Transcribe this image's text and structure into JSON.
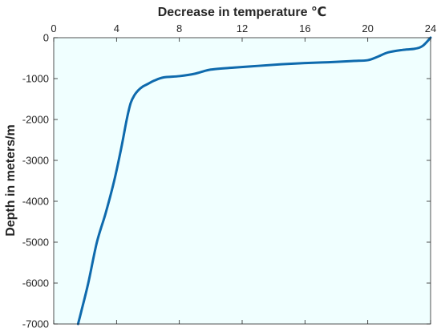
{
  "chart_data": {
    "type": "line",
    "xlabel": "Decrease in temperature ℃",
    "ylabel": "Depth in meters/m",
    "xlim": [
      0,
      24
    ],
    "ylim": [
      -7000,
      0
    ],
    "x_axis_position": "top",
    "x_ticks": [
      "0",
      "4",
      "8",
      "12",
      "16",
      "20",
      "24"
    ],
    "y_ticks": [
      "0",
      "-1000",
      "-2000",
      "-3000",
      "-4000",
      "-5000",
      "-6000",
      "-7000"
    ],
    "grid": false,
    "legend": "none",
    "series": [
      {
        "color": "#0e6aad",
        "x": [
          1.55,
          1.75,
          2.2,
          2.75,
          3.3,
          3.85,
          4.3,
          4.65,
          4.9,
          5.15,
          5.4,
          5.65,
          6.0,
          6.4,
          7.0,
          8.0,
          9.0,
          10.0,
          11.5,
          13.0,
          14.5,
          16.0,
          17.5,
          19.0,
          20.0,
          20.6,
          21.3,
          22.2,
          23.0,
          23.5,
          24.0
        ],
        "y": [
          -7000,
          -6700,
          -6000,
          -5000,
          -4300,
          -3500,
          -2700,
          -2000,
          -1600,
          -1400,
          -1280,
          -1200,
          -1130,
          -1050,
          -970,
          -940,
          -880,
          -780,
          -730,
          -690,
          -650,
          -620,
          -600,
          -570,
          -550,
          -470,
          -360,
          -300,
          -270,
          -200,
          0
        ]
      }
    ]
  }
}
